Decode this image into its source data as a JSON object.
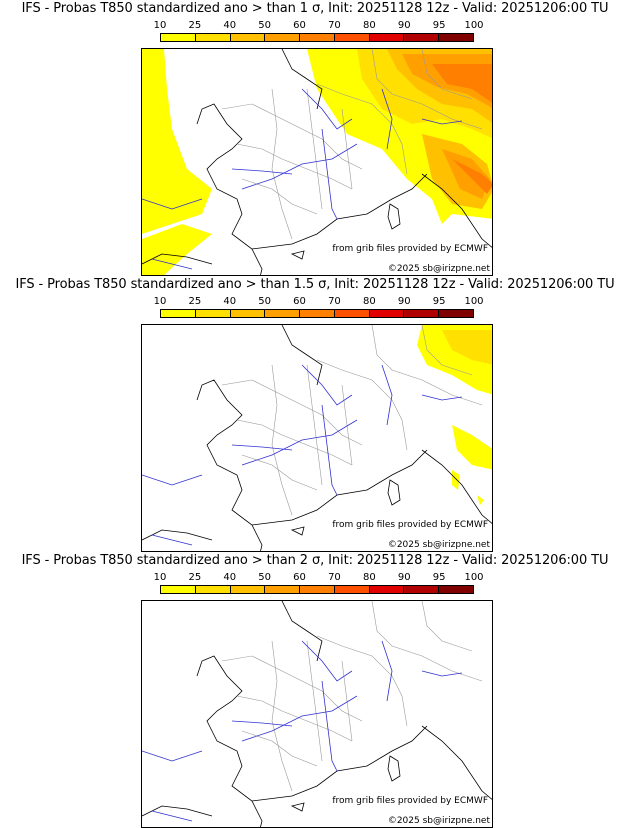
{
  "colorbar": {
    "ticks": [
      "10",
      "25",
      "40",
      "50",
      "60",
      "70",
      "80",
      "90",
      "95",
      "100"
    ],
    "colors": [
      "#ffff00",
      "#ffe000",
      "#ffc000",
      "#ffa000",
      "#ff8000",
      "#ff5000",
      "#e00000",
      "#b00000",
      "#800000"
    ]
  },
  "panels": [
    {
      "title": "IFS - Probas T850  standardized ano > than 1 σ, Init: 20251128 12z - Valid: 20251206:00 TU"
    },
    {
      "title": "IFS - Probas T850  standardized ano > than 1.5 σ, Init: 20251128 12z - Valid: 20251206:00 TU"
    },
    {
      "title": "IFS - Probas T850  standardized ano > than 2 σ, Init: 20251128 12z - Valid: 20251206:00 TU"
    }
  ],
  "credits": {
    "source": "from grib files provided by ECMWF",
    "copyright": "©2025 sb@irizpne.net"
  },
  "colors": {
    "coast": "#000000",
    "rivers": "#3030d0",
    "borders": "#9a9a9a"
  }
}
